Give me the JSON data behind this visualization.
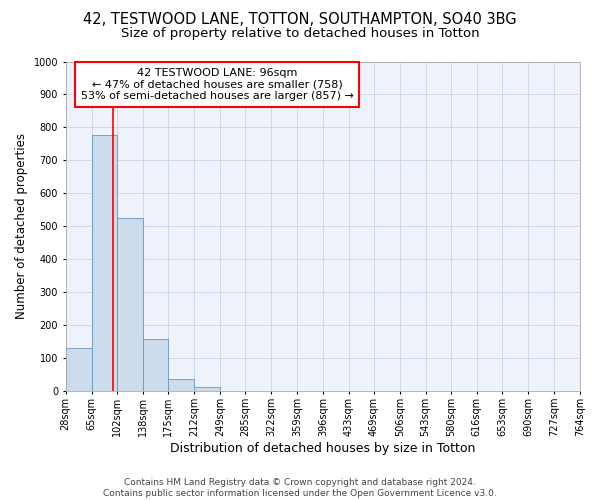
{
  "title_line1": "42, TESTWOOD LANE, TOTTON, SOUTHAMPTON, SO40 3BG",
  "title_line2": "Size of property relative to detached houses in Totton",
  "xlabel": "Distribution of detached houses by size in Totton",
  "ylabel": "Number of detached properties",
  "bar_edges": [
    28,
    65,
    102,
    138,
    175,
    212,
    249,
    285,
    322,
    359,
    396,
    433,
    469,
    506,
    543,
    580,
    616,
    653,
    690,
    727,
    764
  ],
  "bar_heights": [
    133,
    778,
    525,
    158,
    37,
    12,
    0,
    0,
    0,
    0,
    0,
    0,
    0,
    0,
    0,
    0,
    0,
    0,
    0,
    0
  ],
  "bar_color": "#ccdcec",
  "bar_edgecolor": "#6699bb",
  "vline_x": 96,
  "vline_color": "red",
  "annotation_line1": "42 TESTWOOD LANE: 96sqm",
  "annotation_line2": "← 47% of detached houses are smaller (758)",
  "annotation_line3": "53% of semi-detached houses are larger (857) →",
  "annotation_box_color": "white",
  "annotation_box_edgecolor": "red",
  "ylim": [
    0,
    1000
  ],
  "xlim": [
    28,
    764
  ],
  "yticks": [
    0,
    100,
    200,
    300,
    400,
    500,
    600,
    700,
    800,
    900,
    1000
  ],
  "xtick_labels": [
    "28sqm",
    "65sqm",
    "102sqm",
    "138sqm",
    "175sqm",
    "212sqm",
    "249sqm",
    "285sqm",
    "322sqm",
    "359sqm",
    "396sqm",
    "433sqm",
    "469sqm",
    "506sqm",
    "543sqm",
    "580sqm",
    "616sqm",
    "653sqm",
    "690sqm",
    "727sqm",
    "764sqm"
  ],
  "grid_color": "#d0d8e8",
  "background_color": "#eef2fa",
  "footer_text": "Contains HM Land Registry data © Crown copyright and database right 2024.\nContains public sector information licensed under the Open Government Licence v3.0.",
  "title_fontsize": 10.5,
  "subtitle_fontsize": 9.5,
  "xlabel_fontsize": 9,
  "ylabel_fontsize": 8.5,
  "tick_fontsize": 7,
  "annotation_fontsize": 8,
  "footer_fontsize": 6.5
}
